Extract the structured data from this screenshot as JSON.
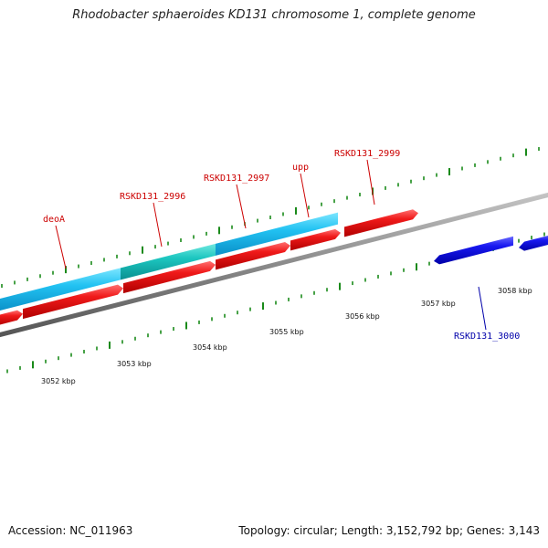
{
  "title": "Rhodobacter sphaeroides KD131 chromosome 1, complete genome",
  "footer": {
    "accession": "Accession: NC_011963",
    "summary": "Topology: circular; Length: 3,152,792 bp; Genes: 3,143"
  },
  "colors": {
    "forward_gene": "#e81010",
    "reverse_gene": "#1414ee",
    "orf_light": "#20c4f0",
    "orf_teal": "#18c4c4",
    "label_forward": "#cc0000",
    "label_reverse": "#0000aa",
    "tick": "#1a8a1a",
    "backbone": "#808080"
  },
  "ticks": [
    {
      "label": "3052 kbp"
    },
    {
      "label": "3053 kbp"
    },
    {
      "label": "3054 kbp"
    },
    {
      "label": "3055 kbp"
    },
    {
      "label": "3056 kbp"
    },
    {
      "label": "3057 kbp"
    },
    {
      "label": "3058 kbp"
    }
  ],
  "gene_labels": [
    {
      "name": "deoA",
      "strand": "forward"
    },
    {
      "name": "RSKD131_2996",
      "strand": "forward"
    },
    {
      "name": "RSKD131_2997",
      "strand": "forward"
    },
    {
      "name": "upp",
      "strand": "forward"
    },
    {
      "name": "RSKD131_2999",
      "strand": "forward"
    },
    {
      "name": "RSKD131_3000",
      "strand": "reverse"
    }
  ]
}
